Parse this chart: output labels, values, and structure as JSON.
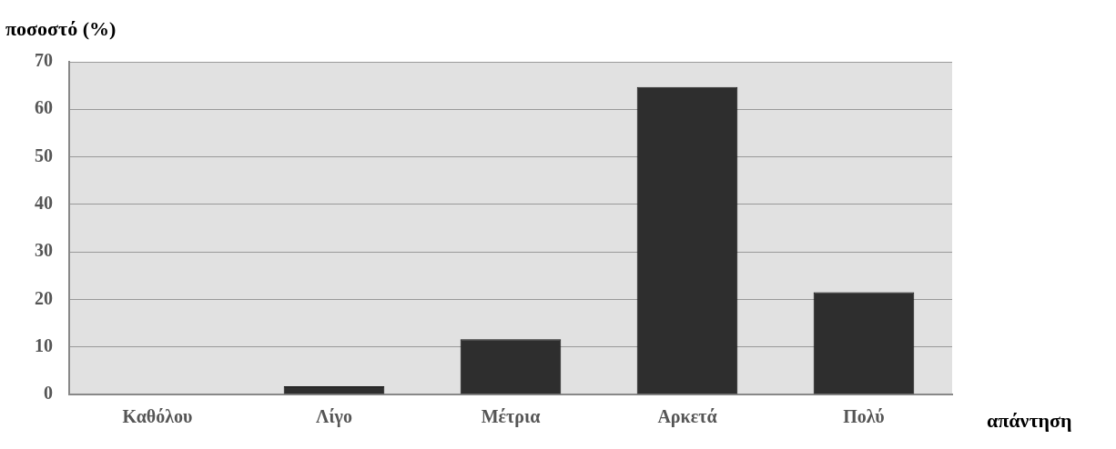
{
  "chart_data": {
    "type": "bar",
    "xlabel": "απάντηση",
    "ylabel": "ποσοστό (%)",
    "categories": [
      "Καθόλου",
      "Λίγο",
      "Μέτρια",
      "Αρκετά",
      "Πολύ"
    ],
    "values": [
      0,
      1.7,
      11.6,
      64.7,
      21.5
    ],
    "color": "#2e2e2e",
    "ylim": [
      0,
      70
    ],
    "yticks": [
      0,
      10,
      20,
      30,
      40,
      50,
      60,
      70
    ],
    "grid": "y",
    "legend": false
  }
}
